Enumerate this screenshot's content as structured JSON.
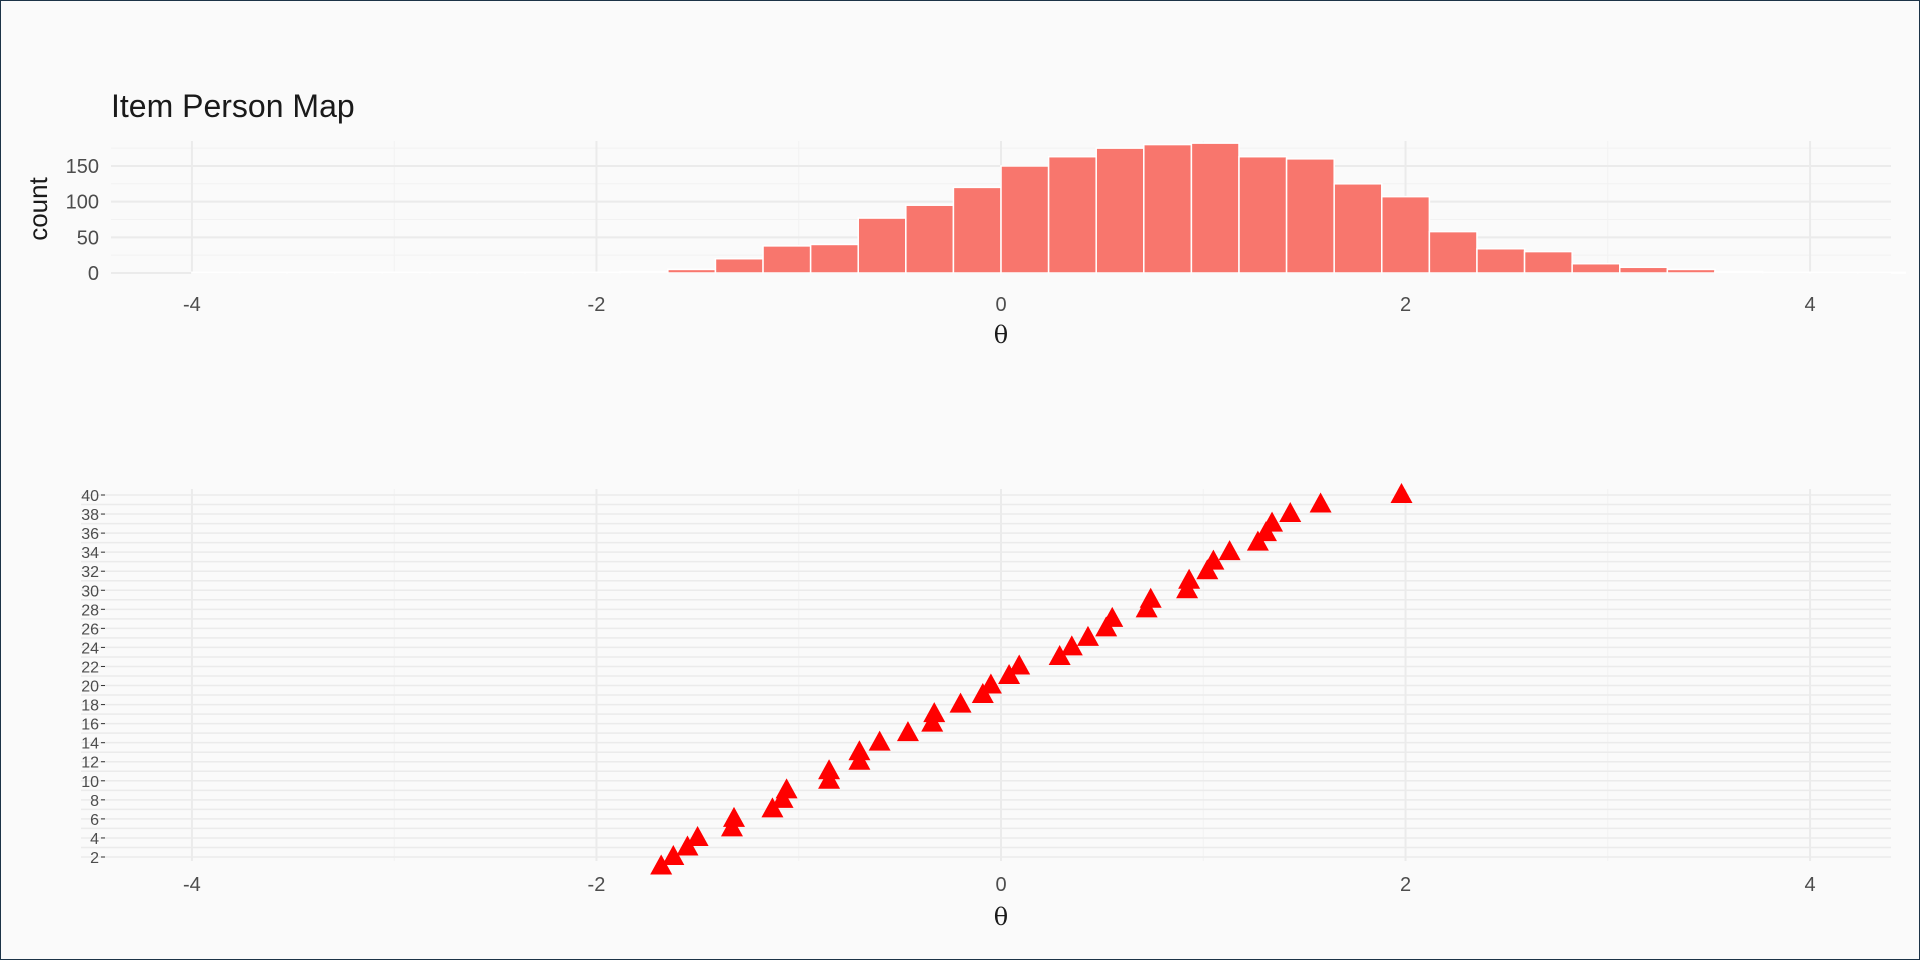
{
  "chart_data": [
    {
      "type": "bar",
      "title": "Item Person Map",
      "xlabel": "θ",
      "ylabel": "count",
      "xlim": [
        -4.4,
        4.4
      ],
      "ylim": [
        0,
        185
      ],
      "x_ticks": [
        "-4",
        "-2",
        "0",
        "2",
        "4"
      ],
      "x_tick_values": [
        -4,
        -2,
        0,
        2,
        4
      ],
      "y_ticks": [
        "0",
        "50",
        "100",
        "150"
      ],
      "y_tick_values": [
        0,
        50,
        100,
        150
      ],
      "bin_width": 0.2353,
      "bin_start": -4.0,
      "values": [
        1,
        1,
        1,
        1,
        1,
        1,
        1,
        1,
        1,
        2,
        5,
        20,
        38,
        40,
        77,
        95,
        120,
        150,
        163,
        175,
        180,
        182,
        163,
        160,
        125,
        107,
        58,
        34,
        30,
        13,
        8,
        5,
        2,
        1,
        1,
        1
      ]
    },
    {
      "type": "scatter",
      "xlabel": "θ",
      "xlim": [
        -4.4,
        4.4
      ],
      "ylim": [
        2,
        40
      ],
      "x_ticks": [
        "-4",
        "-2",
        "0",
        "2",
        "4"
      ],
      "x_tick_values": [
        -4,
        -2,
        0,
        2,
        4
      ],
      "y_ticks": [
        "2",
        "4",
        "6",
        "8",
        "10",
        "12",
        "14",
        "16",
        "18",
        "20",
        "22",
        "24",
        "26",
        "28",
        "30",
        "32",
        "34",
        "36",
        "38",
        "40"
      ],
      "y_tick_values": [
        2,
        4,
        6,
        8,
        10,
        12,
        14,
        16,
        18,
        20,
        22,
        24,
        26,
        28,
        30,
        32,
        34,
        36,
        38,
        40
      ],
      "marker": "triangle",
      "marker_color": "#ff0000",
      "x": [
        -1.68,
        -1.62,
        -1.55,
        -1.5,
        -1.33,
        -1.32,
        -1.13,
        -1.08,
        -1.06,
        -0.85,
        -0.85,
        -0.7,
        -0.7,
        -0.6,
        -0.46,
        -0.34,
        -0.33,
        -0.2,
        -0.09,
        -0.05,
        0.04,
        0.09,
        0.29,
        0.35,
        0.43,
        0.52,
        0.55,
        0.72,
        0.74,
        0.92,
        0.93,
        1.02,
        1.05,
        1.13,
        1.27,
        1.31,
        1.34,
        1.43,
        1.58,
        1.98
      ],
      "y": [
        1,
        2,
        3,
        4,
        5,
        6,
        7,
        8,
        9,
        10,
        11,
        12,
        13,
        14,
        15,
        16,
        17,
        18,
        19,
        20,
        21,
        22,
        23,
        24,
        25,
        26,
        27,
        28,
        29,
        30,
        31,
        32,
        33,
        34,
        35,
        36,
        37,
        38,
        39,
        40
      ]
    }
  ],
  "colors": {
    "bar_fill": "#f8766d",
    "marker": "#ff0000",
    "grid_major": "#ebebeb",
    "grid_minor": "#f2f2f2"
  }
}
